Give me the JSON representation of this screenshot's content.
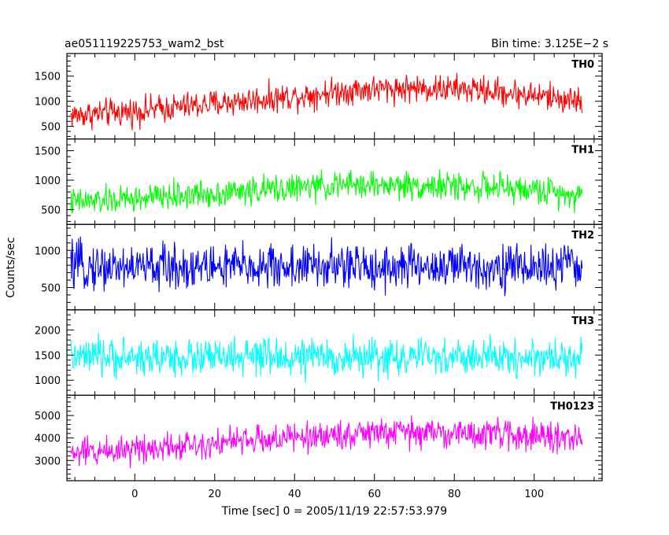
{
  "header": {
    "source_name": "ae051119225753_wam2_bst",
    "bin_time": "Bin time: 3.125E−2 s"
  },
  "chart_data": {
    "type": "line",
    "title": "ae051119225753_wam2_bst",
    "subtitle": "Bin time: 3.125E−2 s",
    "xlabel": "Time [sec] 0 = 2005/11/19 22:57:53.979",
    "ylabel": "Counts/sec",
    "xlim": [
      -17,
      117
    ],
    "x_ticks": [
      0,
      20,
      40,
      60,
      80,
      100
    ],
    "x_range_data": [
      -16,
      112
    ],
    "x_step": 0.03125,
    "grid": false,
    "stacked_panels": true,
    "panels": [
      {
        "name": "TH0",
        "color": "#ff0000",
        "ylim": [
          250,
          1950
        ],
        "y_ticks": [
          500,
          1000,
          1500
        ],
        "profile_x": [
          -16,
          0,
          20,
          40,
          55,
          70,
          85,
          100,
          112
        ],
        "profile_mean": [
          720,
          800,
          950,
          1100,
          1230,
          1260,
          1230,
          1120,
          1000
        ],
        "scatter_halfwidth": 380
      },
      {
        "name": "TH1",
        "color": "#00ff00",
        "ylim": [
          250,
          1700
        ],
        "y_ticks": [
          500,
          1000,
          1500
        ],
        "profile_x": [
          -16,
          0,
          20,
          40,
          55,
          70,
          85,
          100,
          112
        ],
        "profile_mean": [
          620,
          680,
          780,
          870,
          920,
          910,
          890,
          830,
          760
        ],
        "scatter_halfwidth": 320
      },
      {
        "name": "TH2",
        "color": "#0000ff",
        "ylim": [
          200,
          1350
        ],
        "y_ticks": [
          500,
          1000
        ],
        "profile_x": [
          -16,
          112
        ],
        "profile_mean": [
          780,
          780
        ],
        "scatter_halfwidth": 420
      },
      {
        "name": "TH3",
        "color": "#00ffff",
        "ylim": [
          700,
          2400
        ],
        "y_ticks": [
          1000,
          1500,
          2000
        ],
        "profile_x": [
          -16,
          112
        ],
        "profile_mean": [
          1450,
          1450
        ],
        "scatter_halfwidth": 500
      },
      {
        "name": "TH0123",
        "color": "#ff00ff",
        "ylim": [
          2100,
          5900
        ],
        "y_ticks": [
          3000,
          4000,
          5000
        ],
        "profile_x": [
          -16,
          0,
          20,
          40,
          55,
          70,
          85,
          100,
          112
        ],
        "profile_mean": [
          3300,
          3550,
          3800,
          4000,
          4200,
          4250,
          4200,
          4100,
          3900
        ],
        "scatter_halfwidth": 900
      }
    ]
  }
}
